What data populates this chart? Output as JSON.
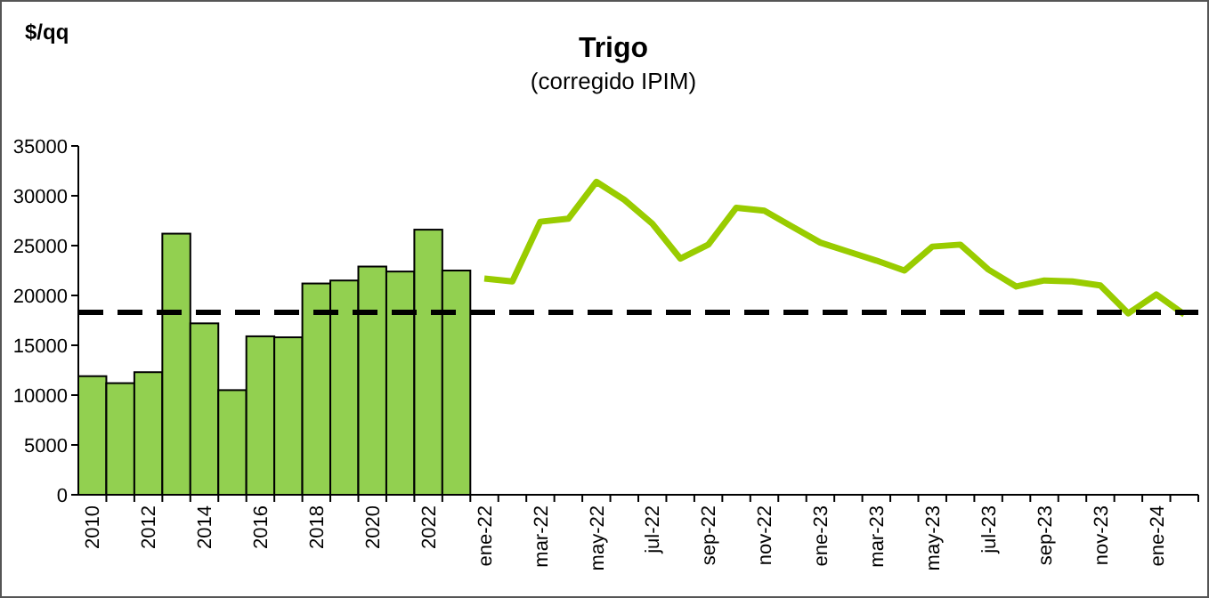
{
  "chart_data": {
    "type": "bar",
    "title": "Trigo",
    "subtitle": "(corregido IPIM)",
    "ylabel": "$/qq",
    "categories": [
      "2010",
      null,
      "2012",
      null,
      "2014",
      null,
      "2016",
      null,
      "2018",
      null,
      "2020",
      null,
      "2022",
      null,
      "ene-22",
      null,
      "mar-22",
      null,
      "may-22",
      null,
      "jul-22",
      null,
      "sep-22",
      null,
      "nov-22",
      null,
      "ene-23",
      null,
      "mar-23",
      null,
      "may-23",
      null,
      "jul-23",
      null,
      "sep-23",
      null,
      "nov-23",
      null,
      "ene-24",
      null
    ],
    "series": [
      {
        "color": "#92d050",
        "values": [
          11900,
          11200,
          12300,
          26200,
          17200,
          10500,
          15900,
          15800,
          21200,
          21500,
          22900,
          22400,
          26600,
          22500,
          null,
          null,
          null,
          null,
          null,
          null,
          null,
          null,
          null,
          null,
          null,
          null,
          null,
          null,
          null,
          null,
          null,
          null,
          null,
          null,
          null,
          null,
          null,
          null,
          null,
          null
        ]
      },
      {
        "type": "line",
        "color": "#99cc00",
        "values": [
          null,
          null,
          null,
          null,
          null,
          null,
          null,
          null,
          null,
          null,
          null,
          null,
          null,
          null,
          21700,
          21400,
          27400,
          27700,
          31400,
          29600,
          27200,
          23700,
          25100,
          28800,
          28500,
          26900,
          25300,
          24400,
          23500,
          22500,
          24900,
          25100,
          22600,
          20900,
          21500,
          21400,
          21000,
          18200,
          20100,
          18100
        ]
      }
    ],
    "ylim": [
      0,
      35000
    ],
    "yticks": [
      0,
      5000,
      10000,
      15000,
      20000,
      25000,
      30000,
      35000
    ],
    "grid": false,
    "ref_lines": [
      {
        "axis": "y",
        "value": 18300,
        "color": "#000000",
        "line_style": "dashed"
      }
    ]
  }
}
